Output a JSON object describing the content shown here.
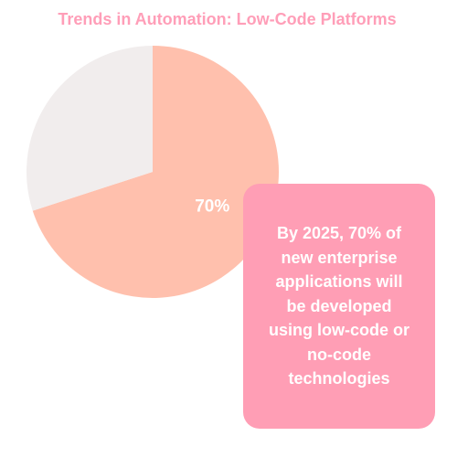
{
  "chart_data": {
    "type": "pie",
    "title": "Trends in Automation: Low-Code Platforms",
    "slices": [
      {
        "value": 70,
        "label": "70%",
        "color": "#ffc0ad"
      },
      {
        "value": 30,
        "label": "",
        "color": "#f1eded"
      }
    ],
    "colors": {
      "title": "#ff9eb8",
      "slice_label": "#ffffff"
    }
  },
  "callout": {
    "text": "By 2025, 70% of new enterprise applications will be developed using low-code or no-code technologies",
    "background": "#ff9eb5",
    "color": "#ffffff"
  }
}
